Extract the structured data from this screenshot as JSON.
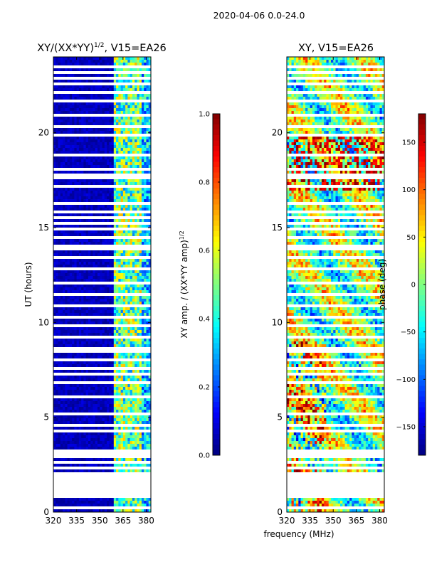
{
  "suptitle": "2020-04-06 0.0-24.0",
  "shared_xlabel": "frequency (MHz)",
  "chart_data": [
    {
      "type": "heatmap",
      "title_main": "XY/(XX*YY)",
      "title_sup": "1/2",
      "title_rest": ", V15=EA26",
      "ylabel": "UT (hours)",
      "xlim": [
        320,
        383
      ],
      "ylim": [
        0,
        24
      ],
      "xticks": [
        320,
        335,
        350,
        365,
        380
      ],
      "yticks": [
        0,
        5,
        10,
        15,
        20
      ],
      "colormap": "jet",
      "colorbar": {
        "label_main": "XY amp. / (XX*YY amp)",
        "label_sup": "1/2",
        "range": [
          0.0,
          1.0
        ],
        "ticks": [
          "0.0",
          "0.2",
          "0.4",
          "0.6",
          "0.8",
          "1.0"
        ]
      }
    },
    {
      "type": "heatmap",
      "title": "XY, V15=EA26",
      "xlim": [
        320,
        383
      ],
      "ylim": [
        0,
        24
      ],
      "xticks": [
        320,
        335,
        350,
        365,
        380
      ],
      "yticks": [
        0,
        5,
        10,
        15,
        20
      ],
      "colormap": "jet",
      "colorbar": {
        "label": "phase (deg)",
        "range": [
          -180,
          180
        ],
        "ticks": [
          "150",
          "100",
          "50",
          "0",
          "−50",
          "−100",
          "−150"
        ]
      }
    }
  ]
}
